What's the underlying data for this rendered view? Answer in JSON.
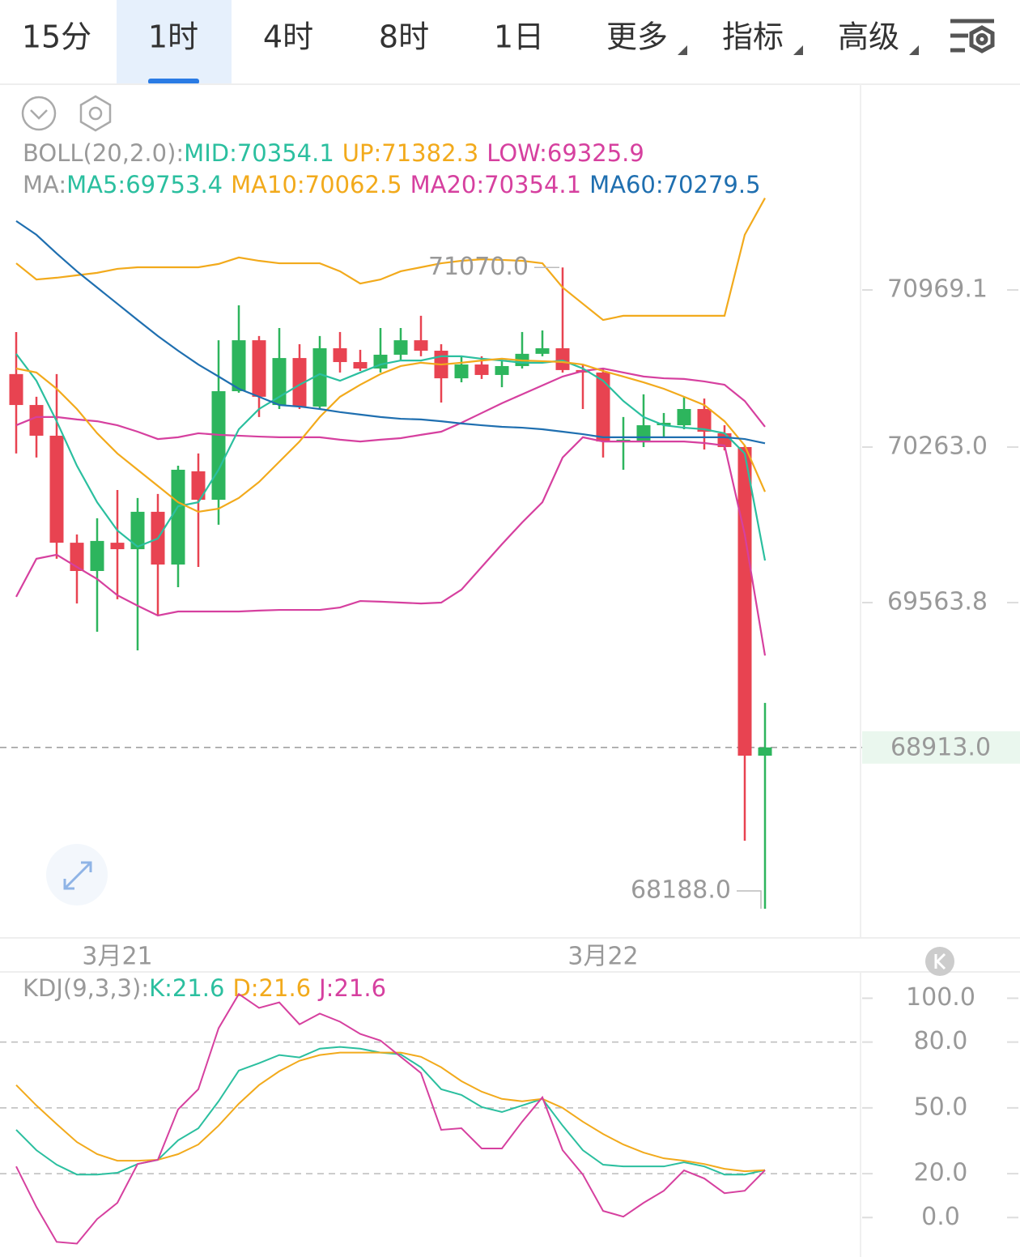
{
  "tabs": [
    "15分",
    "1时",
    "4时",
    "8时",
    "1日",
    "更多",
    "指标",
    "高级"
  ],
  "active_tab": 1,
  "chart_data": [
    {
      "type": "candlestick",
      "legend_lines": [
        {
          "label": "BOLL(20,2.0):",
          "items": [
            {
              "text": "MID:70354.1",
              "color": "#2bbf9f"
            },
            {
              "text": "UP:71382.3",
              "color": "#f2aa1c"
            },
            {
              "text": "LOW:69325.9",
              "color": "#d6409f"
            }
          ]
        },
        {
          "label": "MA:",
          "items": [
            {
              "text": "MA5:69753.4",
              "color": "#2bbf9f"
            },
            {
              "text": "MA10:70062.5",
              "color": "#f2aa1c"
            },
            {
              "text": "MA20:70354.1",
              "color": "#d6409f"
            },
            {
              "text": "MA60:70279.5",
              "color": "#1f6fb0"
            }
          ]
        }
      ],
      "categories": [
        null,
        null,
        null,
        null,
        null,
        "3月21",
        null,
        null,
        null,
        null,
        null,
        null,
        null,
        null,
        null,
        null,
        null,
        null,
        null,
        null,
        null,
        null,
        null,
        null,
        null,
        null,
        null,
        null,
        null,
        "3月22",
        null,
        null,
        null,
        null,
        null,
        null,
        null,
        null
      ],
      "open": [
        70591,
        70452,
        70314,
        69833,
        69706,
        69833,
        69804,
        69972,
        69735,
        70154,
        70026,
        70514,
        70743,
        70452,
        70663,
        70445,
        70707,
        70645,
        70616,
        70678,
        70743,
        70696,
        70572,
        70634,
        70587,
        70627,
        70682,
        70707,
        70609,
        70598,
        70288,
        70288,
        70365,
        70361,
        70434,
        70325,
        70263,
        68876
      ],
      "high": [
        70780,
        70489,
        70591,
        69870,
        69943,
        70070,
        70034,
        70052,
        70179,
        70234,
        70743,
        70900,
        70762,
        70798,
        70725,
        70762,
        70780,
        70700,
        70798,
        70798,
        70853,
        70725,
        70671,
        70671,
        70652,
        70780,
        70787,
        71070,
        70634,
        70616,
        70398,
        70500,
        70416,
        70489,
        70481,
        70361,
        70270,
        69113
      ],
      "low": [
        70234,
        70216,
        69761,
        69560,
        69433,
        69579,
        69349,
        69506,
        69633,
        69724,
        69914,
        70507,
        70398,
        70434,
        70434,
        70434,
        70598,
        70605,
        70598,
        70652,
        70671,
        70463,
        70554,
        70569,
        70532,
        70616,
        70671,
        70598,
        70434,
        70216,
        70161,
        70263,
        70307,
        70343,
        70252,
        70248,
        68494,
        68188
      ],
      "close": [
        70452,
        70314,
        69833,
        69706,
        69841,
        69804,
        69972,
        69735,
        70161,
        70026,
        70514,
        70743,
        70489,
        70663,
        70445,
        70707,
        70645,
        70616,
        70678,
        70743,
        70696,
        70572,
        70634,
        70587,
        70627,
        70682,
        70707,
        70609,
        70598,
        70288,
        70296,
        70361,
        70372,
        70434,
        70332,
        70263,
        68876,
        68913
      ],
      "up_color": "#2db55d",
      "down_color": "#e84351",
      "lines": [
        {
          "color": "#f2aa1c",
          "values": [
            71089,
            71016,
            71024,
            71035,
            71046,
            71064,
            71071,
            71071,
            71071,
            71071,
            71086,
            71115,
            71100,
            71089,
            71089,
            71089,
            71053,
            70998,
            71016,
            71053,
            71071,
            71089,
            71100,
            71107,
            71104,
            71100,
            71089,
            70980,
            70907,
            70834,
            70853,
            70853,
            70853,
            70853,
            70853,
            70853,
            71217,
            71382
          ]
        },
        {
          "color": "#d6409f",
          "values": [
            70361,
            70398,
            70398,
            70387,
            70379,
            70361,
            70332,
            70299,
            70307,
            70325,
            70318,
            70314,
            70310,
            70307,
            70307,
            70307,
            70296,
            70288,
            70296,
            70303,
            70318,
            70332,
            70372,
            70416,
            70460,
            70500,
            70540,
            70580,
            70605,
            70616,
            70598,
            70580,
            70572,
            70569,
            70558,
            70543,
            70470,
            70354
          ]
        },
        {
          "color": "#d6409f",
          "values": [
            69590,
            69761,
            69779,
            69724,
            69670,
            69597,
            69550,
            69506,
            69524,
            69524,
            69524,
            69524,
            69528,
            69531,
            69531,
            69531,
            69542,
            69571,
            69568,
            69564,
            69560,
            69564,
            69622,
            69724,
            69826,
            69924,
            70015,
            70216,
            70307,
            70288,
            70288,
            70288,
            70288,
            70288,
            70281,
            70270,
            69870,
            69326
          ]
        },
        {
          "color": "#2bbf9f",
          "values": [
            70682,
            70561,
            70379,
            70179,
            70015,
            69888,
            69815,
            69852,
            69997,
            70015,
            70161,
            70343,
            70434,
            70489,
            70543,
            70591,
            70561,
            70598,
            70634,
            70652,
            70652,
            70671,
            70671,
            70660,
            70652,
            70642,
            70642,
            70652,
            70616,
            70561,
            70470,
            70398,
            70361,
            70350,
            70343,
            70325,
            70234,
            69753
          ]
        },
        {
          "color": "#f2aa1c",
          "values": [
            70616,
            70598,
            70525,
            70434,
            70325,
            70234,
            70161,
            70088,
            70015,
            69972,
            69986,
            70034,
            70106,
            70197,
            70288,
            70398,
            70489,
            70543,
            70591,
            70627,
            70642,
            70634,
            70642,
            70652,
            70660,
            70652,
            70649,
            70645,
            70634,
            70605,
            70580,
            70554,
            70525,
            70489,
            70452,
            70379,
            70270,
            70062
          ]
        },
        {
          "color": "#1f6fb0",
          "values": [
            71279,
            71217,
            71133,
            71053,
            70980,
            70907,
            70834,
            70762,
            70696,
            70634,
            70580,
            70525,
            70489,
            70452,
            70445,
            70434,
            70420,
            70409,
            70398,
            70390,
            70387,
            70379,
            70369,
            70361,
            70354,
            70350,
            70343,
            70332,
            70321,
            70307,
            70307,
            70307,
            70307,
            70307,
            70307,
            70307,
            70299,
            70280
          ]
        }
      ],
      "high_label": "71070.0",
      "low_label": "68188.0",
      "last_price": {
        "value": 68913,
        "label": "68913.0"
      },
      "ylim": [
        68057,
        71890
      ],
      "yticks": [
        70969.1,
        {
          "value": 70263,
          "label": "70263.0"
        },
        69563.8
      ]
    },
    {
      "type": "line",
      "legend_lines": [
        {
          "label": "KDJ(9,3,3):",
          "items": [
            {
              "text": "K:21.6",
              "color": "#2bbf9f"
            },
            {
              "text": "D:21.6",
              "color": "#f2aa1c"
            },
            {
              "text": "J:21.6",
              "color": "#d6409f"
            }
          ]
        }
      ],
      "series": [
        {
          "color": "#2bbf9f",
          "values": [
            40.0,
            30.7,
            24.1,
            19.6,
            19.6,
            20.4,
            24.4,
            26.3,
            35.2,
            40.7,
            53.0,
            67.0,
            70.4,
            74.1,
            73.0,
            77.0,
            77.8,
            77.0,
            75.2,
            74.4,
            68.5,
            58.5,
            55.9,
            50.4,
            48.1,
            51.1,
            54.1,
            41.9,
            30.7,
            24.1,
            23.3,
            23.3,
            23.3,
            25.2,
            23.3,
            19.6,
            19.6,
            21.6
          ]
        },
        {
          "color": "#f2aa1c",
          "values": [
            60.4,
            51.1,
            42.6,
            34.4,
            28.9,
            25.9,
            25.9,
            26.3,
            28.9,
            33.3,
            41.9,
            51.9,
            60.4,
            66.7,
            71.5,
            74.1,
            75.2,
            75.2,
            75.2,
            75.2,
            73.3,
            68.5,
            62.2,
            57.4,
            54.1,
            53.0,
            54.1,
            50.0,
            43.7,
            38.1,
            33.3,
            29.6,
            27.0,
            25.9,
            24.4,
            22.2,
            21.1,
            21.6
          ]
        },
        {
          "color": "#d6409f",
          "values": [
            23.3,
            4.8,
            -11.1,
            -11.9,
            -0.7,
            6.7,
            24.4,
            26.3,
            49.3,
            58.5,
            86.3,
            101.9,
            95.6,
            98.1,
            88.1,
            93.0,
            89.3,
            83.7,
            80.7,
            73.3,
            65.9,
            40.0,
            40.7,
            31.5,
            31.5,
            43.7,
            54.8,
            30.7,
            19.6,
            3.0,
            0.4,
            6.7,
            12.2,
            21.5,
            17.8,
            11.1,
            12.2,
            21.6
          ]
        }
      ],
      "ylim": [
        -18,
        112
      ],
      "yticks": [
        {
          "value": 100,
          "label": "100.0"
        },
        {
          "value": 80,
          "label": "80.0"
        },
        {
          "value": 50,
          "label": "50.0"
        },
        {
          "value": 20,
          "label": "20.0"
        },
        {
          "value": 0,
          "label": "0.0"
        }
      ]
    }
  ]
}
